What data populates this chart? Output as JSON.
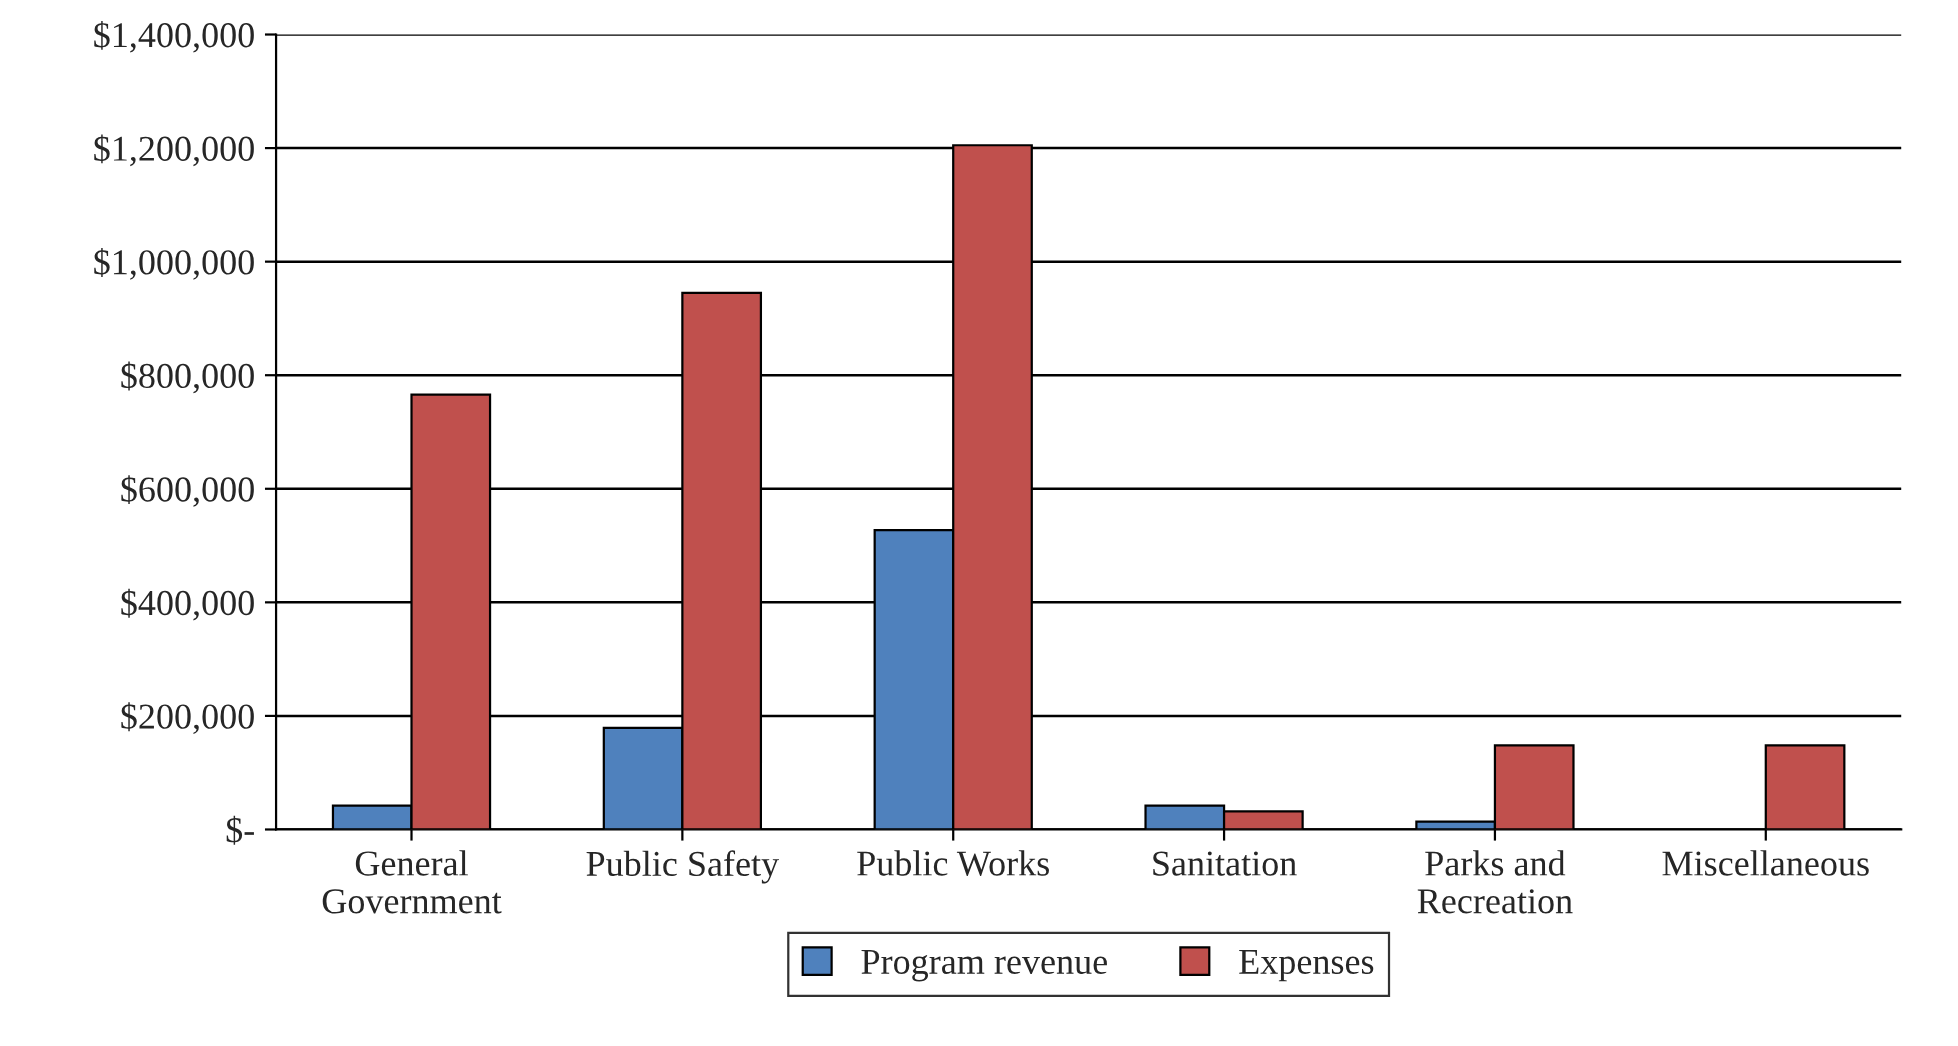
{
  "chart_data": {
    "type": "bar",
    "categories": [
      "General\nGovernment",
      "Public Safety",
      "Public Works",
      "Sanitation",
      "Parks and\nRecreation",
      "Miscellaneous"
    ],
    "series": [
      {
        "name": "Program revenue",
        "color": "#4f81bd",
        "values": [
          42000,
          179000,
          527000,
          42000,
          14000,
          null
        ]
      },
      {
        "name": "Expenses",
        "color": "#c0504d",
        "values": [
          766000,
          945000,
          1205000,
          32000,
          148000,
          148000
        ]
      }
    ],
    "ylim": [
      0,
      1400000
    ],
    "yticks": [
      {
        "value": 0,
        "label": "$-"
      },
      {
        "value": 200000,
        "label": "$200,000"
      },
      {
        "value": 400000,
        "label": "$400,000"
      },
      {
        "value": 600000,
        "label": "$600,000"
      },
      {
        "value": 800000,
        "label": "$800,000"
      },
      {
        "value": 1000000,
        "label": "$1,000,000"
      },
      {
        "value": 1200000,
        "label": "$1,200,000"
      },
      {
        "value": 1400000,
        "label": "$1,400,000"
      }
    ],
    "grid": "y",
    "legend": "bottom"
  }
}
